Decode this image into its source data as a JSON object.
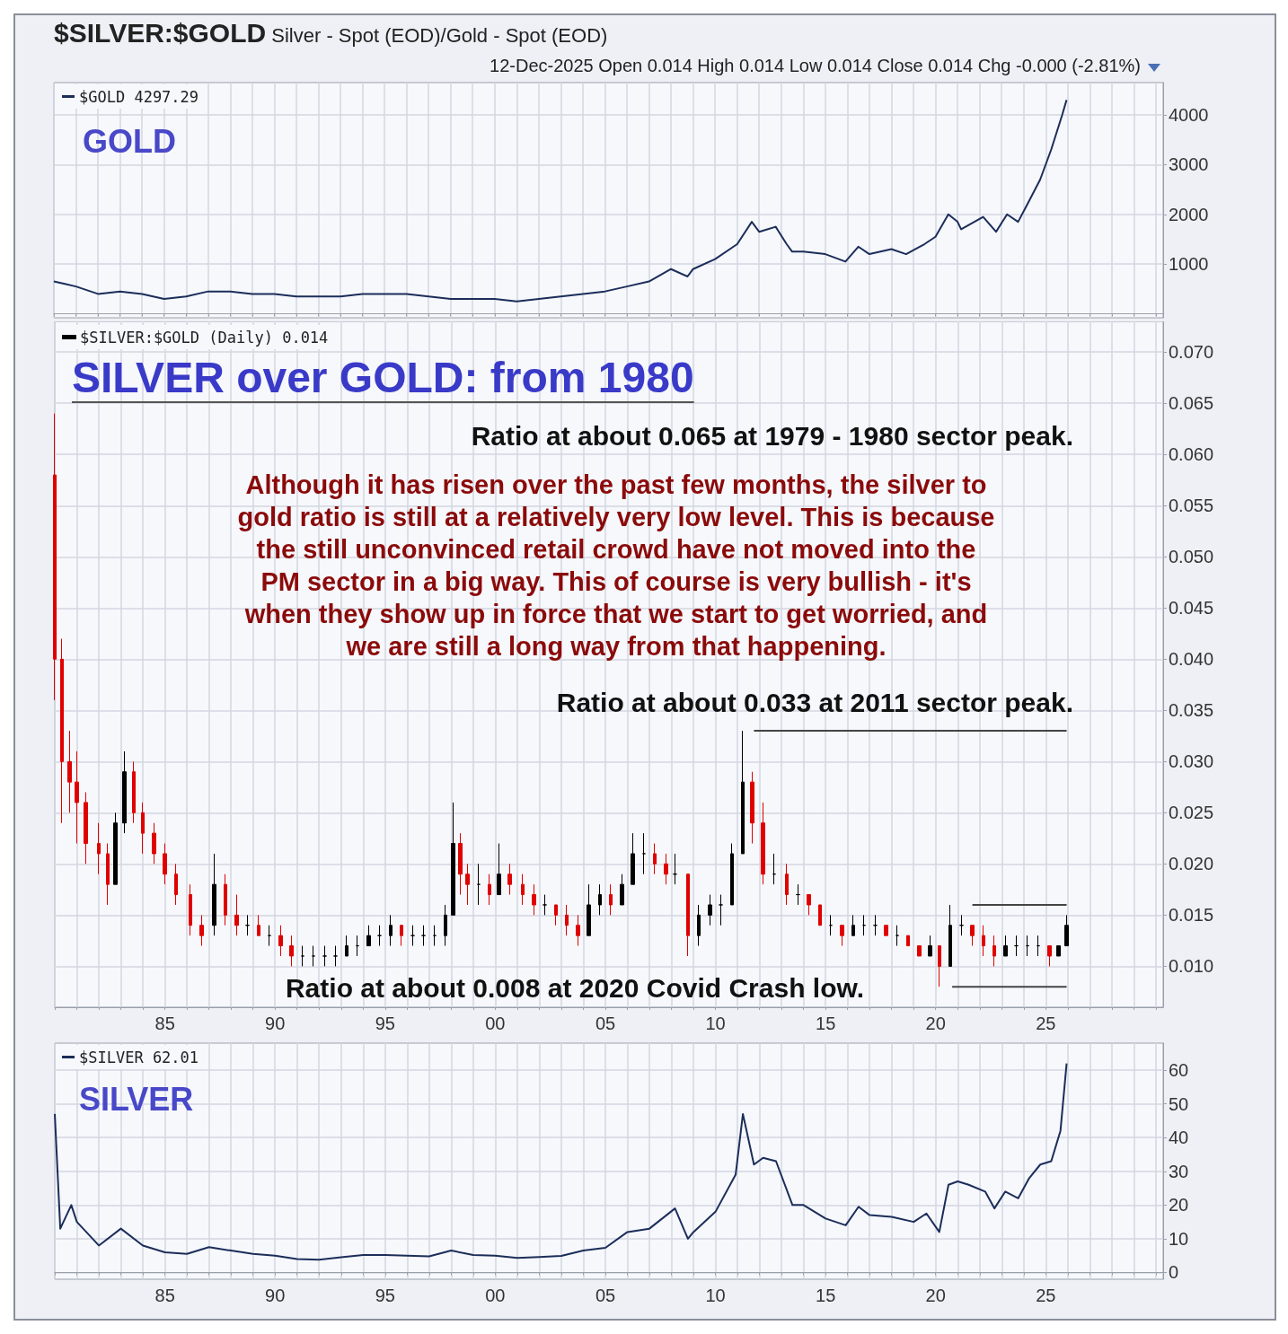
{
  "chart_data": [
    {
      "type": "other",
      "title": "$SILVER:$GOLD Silver - Spot (EOD)/Gold - Spot (EOD)",
      "subtitle": "12-Dec-2025 Open 0.014 High 0.014 Low 0.014 Close 0.014 Chg -0.000 (-2.81%)"
    },
    {
      "type": "line",
      "annotations": [
        "GOLD"
      ],
      "xlim": [
        "1980-01-01",
        "2030-05-01"
      ],
      "xticks": [
        {
          "value": "1980",
          "label": null
        },
        {
          "value": "1981",
          "label": null
        },
        {
          "value": "1982",
          "label": null
        },
        {
          "value": "1983",
          "label": null
        },
        {
          "value": "1984",
          "label": null
        },
        {
          "value": "1985",
          "label": null
        },
        {
          "value": "1986",
          "label": null
        },
        {
          "value": "1987",
          "label": null
        },
        {
          "value": "1988",
          "label": null
        },
        {
          "value": "1989",
          "label": null
        },
        {
          "value": "1990",
          "label": null
        },
        {
          "value": "1991",
          "label": null
        },
        {
          "value": "1992",
          "label": null
        },
        {
          "value": "1993",
          "label": null
        },
        {
          "value": "1994",
          "label": null
        },
        {
          "value": "1995",
          "label": null
        },
        {
          "value": "1996",
          "label": null
        },
        {
          "value": "1997",
          "label": null
        },
        {
          "value": "1998",
          "label": null
        },
        {
          "value": "1999",
          "label": null
        },
        {
          "value": "2000",
          "label": null
        },
        {
          "value": "2001",
          "label": null
        },
        {
          "value": "2002",
          "label": null
        },
        {
          "value": "2003",
          "label": null
        },
        {
          "value": "2004",
          "label": null
        },
        {
          "value": "2005",
          "label": null
        },
        {
          "value": "2006",
          "label": null
        },
        {
          "value": "2007",
          "label": null
        },
        {
          "value": "2008",
          "label": null
        },
        {
          "value": "2009",
          "label": null
        },
        {
          "value": "2010",
          "label": null
        },
        {
          "value": "2011",
          "label": null
        },
        {
          "value": "2012",
          "label": null
        },
        {
          "value": "2013",
          "label": null
        },
        {
          "value": "2014",
          "label": null
        },
        {
          "value": "2015",
          "label": null
        },
        {
          "value": "2016",
          "label": null
        },
        {
          "value": "2017",
          "label": null
        },
        {
          "value": "2018",
          "label": null
        },
        {
          "value": "2019",
          "label": null
        },
        {
          "value": "2020",
          "label": null
        },
        {
          "value": "2021",
          "label": null
        },
        {
          "value": "2022",
          "label": null
        },
        {
          "value": "2023",
          "label": null
        },
        {
          "value": "2024",
          "label": null
        },
        {
          "value": "2025",
          "label": null
        },
        {
          "value": "2026",
          "label": null
        },
        {
          "value": "2027",
          "label": null
        },
        {
          "value": "2028",
          "label": null
        },
        {
          "value": "2029",
          "label": null
        },
        {
          "value": "2030",
          "label": null
        }
      ],
      "ylim": [
        -80,
        4650
      ],
      "yticks": [
        1000,
        2000,
        3000,
        4000
      ],
      "grid": true,
      "legend": "top left",
      "tick_labels": "y",
      "series": [
        {
          "name": "$GOLD 4297.29",
          "color": "#1c2d5a",
          "x": [
            "1980-01",
            "1980-07",
            "1981-01",
            "1982-01",
            "1983-01",
            "1984-01",
            "1985-01",
            "1986-01",
            "1987-01",
            "1988-01",
            "1989-01",
            "1990-01",
            "1991-01",
            "1992-01",
            "1993-01",
            "1994-01",
            "1995-01",
            "1996-01",
            "1997-01",
            "1998-01",
            "1999-01",
            "2000-01",
            "2001-01",
            "2002-01",
            "2003-01",
            "2004-01",
            "2005-01",
            "2006-01",
            "2007-01",
            "2008-01",
            "2008-10",
            "2009-01",
            "2010-01",
            "2011-01",
            "2011-09",
            "2012-01",
            "2012-10",
            "2013-04",
            "2013-07",
            "2014-01",
            "2015-01",
            "2015-12",
            "2016-07",
            "2017-01",
            "2018-01",
            "2018-09",
            "2019-07",
            "2020-01",
            "2020-08",
            "2021-01",
            "2021-03",
            "2022-03",
            "2022-10",
            "2023-04",
            "2023-10",
            "2024-03",
            "2024-10",
            "2025-04",
            "2025-10",
            "2025-12-12"
          ],
          "values": [
            650,
            600,
            550,
            400,
            450,
            400,
            300,
            350,
            450,
            450,
            400,
            400,
            350,
            350,
            350,
            400,
            400,
            400,
            350,
            300,
            300,
            300,
            250,
            300,
            350,
            400,
            450,
            550,
            650,
            900,
            750,
            900,
            1100,
            1400,
            1850,
            1650,
            1750,
            1400,
            1250,
            1250,
            1200,
            1050,
            1350,
            1200,
            1300,
            1200,
            1400,
            1550,
            2000,
            1850,
            1700,
            1950,
            1650,
            2000,
            1850,
            2200,
            2700,
            3300,
            4000,
            4300
          ]
        }
      ]
    },
    {
      "type": "candlestick",
      "title": "SILVER over GOLD: from 1980",
      "annotations": [
        "Ratio at about 0.065 at 1979 - 1980 sector peak.",
        "Although it has risen over the past few months, the silver to\ngold ratio is still at a relatively very low level. This is because\nthe still unconvinced retail crowd have not moved into the\nPM sector in a big way. This of course is very bullish - it's\nwhen they show up in force that we start to get worried, and\nwe are still a long way from that happening.",
        "Ratio at about 0.033 at 2011 sector peak.",
        "Ratio at about 0.008 at 2020 Covid Crash low."
      ],
      "xlim": [
        "1980-01-01",
        "2030-05-01"
      ],
      "xticks": [
        {
          "value": "1980",
          "label": null
        },
        {
          "value": "1981",
          "label": null
        },
        {
          "value": "1982",
          "label": null
        },
        {
          "value": "1983",
          "label": null
        },
        {
          "value": "1984",
          "label": null
        },
        {
          "value": "1985",
          "label": "85"
        },
        {
          "value": "1986",
          "label": null
        },
        {
          "value": "1987",
          "label": null
        },
        {
          "value": "1988",
          "label": null
        },
        {
          "value": "1989",
          "label": null
        },
        {
          "value": "1990",
          "label": "90"
        },
        {
          "value": "1991",
          "label": null
        },
        {
          "value": "1992",
          "label": null
        },
        {
          "value": "1993",
          "label": null
        },
        {
          "value": "1994",
          "label": null
        },
        {
          "value": "1995",
          "label": "95"
        },
        {
          "value": "1996",
          "label": null
        },
        {
          "value": "1997",
          "label": null
        },
        {
          "value": "1998",
          "label": null
        },
        {
          "value": "1999",
          "label": null
        },
        {
          "value": "2000",
          "label": "00"
        },
        {
          "value": "2001",
          "label": null
        },
        {
          "value": "2002",
          "label": null
        },
        {
          "value": "2003",
          "label": null
        },
        {
          "value": "2004",
          "label": null
        },
        {
          "value": "2005",
          "label": "05"
        },
        {
          "value": "2006",
          "label": null
        },
        {
          "value": "2007",
          "label": null
        },
        {
          "value": "2008",
          "label": null
        },
        {
          "value": "2009",
          "label": null
        },
        {
          "value": "2010",
          "label": "10"
        },
        {
          "value": "2011",
          "label": null
        },
        {
          "value": "2012",
          "label": null
        },
        {
          "value": "2013",
          "label": null
        },
        {
          "value": "2014",
          "label": null
        },
        {
          "value": "2015",
          "label": "15"
        },
        {
          "value": "2016",
          "label": null
        },
        {
          "value": "2017",
          "label": null
        },
        {
          "value": "2018",
          "label": null
        },
        {
          "value": "2019",
          "label": null
        },
        {
          "value": "2020",
          "label": "20"
        },
        {
          "value": "2021",
          "label": null
        },
        {
          "value": "2022",
          "label": null
        },
        {
          "value": "2023",
          "label": null
        },
        {
          "value": "2024",
          "label": null
        },
        {
          "value": "2025",
          "label": "25"
        },
        {
          "value": "2026",
          "label": null
        },
        {
          "value": "2027",
          "label": null
        },
        {
          "value": "2028",
          "label": null
        },
        {
          "value": "2029",
          "label": null
        },
        {
          "value": "2030",
          "label": null
        }
      ],
      "ylim": [
        0.006,
        0.073
      ],
      "yticks": [
        {
          "value": 0.01,
          "label": "0.010"
        },
        {
          "value": 0.015,
          "label": "0.015"
        },
        {
          "value": 0.02,
          "label": "0.020"
        },
        {
          "value": 0.025,
          "label": "0.025"
        },
        {
          "value": 0.03,
          "label": "0.030"
        },
        {
          "value": 0.035,
          "label": "0.035"
        },
        {
          "value": 0.04,
          "label": "0.040"
        },
        {
          "value": 0.045,
          "label": "0.045"
        },
        {
          "value": 0.05,
          "label": "0.050"
        },
        {
          "value": 0.055,
          "label": "0.055"
        },
        {
          "value": 0.06,
          "label": "0.060"
        },
        {
          "value": 0.065,
          "label": "0.065"
        },
        {
          "value": 0.07,
          "label": "0.070"
        }
      ],
      "grid": true,
      "legend": "top left",
      "series": [
        {
          "name": "$SILVER:$GOLD (Daily) 0.014",
          "color": "#000000",
          "colors": [
            "#e00000",
            "#e00000",
            "#e00000",
            "#e00000",
            "#e00000",
            "#e00000",
            "#e00000",
            "#000000",
            "#000000",
            "#e00000",
            "#e00000",
            "#e00000",
            "#e00000",
            "#e00000",
            "#e00000",
            "#e00000",
            "#000000",
            "#e00000",
            "#e00000",
            "#000000",
            "#e00000",
            "#000000",
            "#e00000",
            "#e00000",
            "#000000",
            "#000000",
            "#000000",
            "#000000",
            "#000000",
            "#000000",
            "#000000",
            "#000000",
            "#000000",
            "#e00000",
            "#000000",
            "#000000",
            "#000000",
            "#000000",
            "#000000",
            "#e00000",
            "#e00000",
            "#000000",
            "#e00000",
            "#000000",
            "#e00000",
            "#e00000",
            "#e00000",
            "#000000",
            "#e00000",
            "#e00000",
            "#e00000",
            "#000000",
            "#000000",
            "#e00000",
            "#000000",
            "#000000",
            "#000000",
            "#e00000",
            "#e00000",
            "#000000",
            "#e00000",
            "#000000",
            "#000000",
            "#000000",
            "#000000",
            "#000000",
            "#e00000",
            "#e00000",
            "#000000",
            "#e00000",
            "#000000",
            "#e00000",
            "#e00000",
            "#000000",
            "#e00000",
            "#000000",
            "#000000",
            "#000000",
            "#e00000",
            "#000000",
            "#e00000",
            "#e00000",
            "#000000",
            "#e00000",
            "#000000",
            "#000000",
            "#e00000",
            "#e00000",
            "#e00000",
            "#000000",
            "#000000",
            "#000000",
            "#000000",
            "#e00000",
            "#000000",
            "#000000"
          ],
          "x": [
            "1980-01",
            "1980-05",
            "1980-09",
            "1981-01",
            "1981-06",
            "1982-01",
            "1982-06",
            "1982-10",
            "1983-03",
            "1983-08",
            "1984-01",
            "1984-07",
            "1985-01",
            "1985-07",
            "1986-03",
            "1986-09",
            "1987-04",
            "1987-10",
            "1988-04",
            "1988-10",
            "1989-04",
            "1989-10",
            "1990-04",
            "1990-10",
            "1991-04",
            "1991-10",
            "1992-04",
            "1992-10",
            "1993-04",
            "1993-10",
            "1994-04",
            "1994-10",
            "1995-04",
            "1995-10",
            "1996-04",
            "1996-10",
            "1997-04",
            "1997-10",
            "1998-02",
            "1998-06",
            "1998-10",
            "1999-04",
            "1999-10",
            "2000-03",
            "2000-09",
            "2001-04",
            "2001-10",
            "2002-04",
            "2002-10",
            "2003-04",
            "2003-10",
            "2004-04",
            "2004-10",
            "2005-04",
            "2005-10",
            "2006-04",
            "2006-10",
            "2007-04",
            "2007-10",
            "2008-03",
            "2008-10",
            "2009-04",
            "2009-10",
            "2010-04",
            "2010-10",
            "2011-04",
            "2011-09",
            "2012-03",
            "2012-09",
            "2013-04",
            "2013-10",
            "2014-04",
            "2014-10",
            "2015-04",
            "2015-10",
            "2016-04",
            "2016-10",
            "2017-04",
            "2017-10",
            "2018-04",
            "2018-10",
            "2019-04",
            "2019-10",
            "2020-03",
            "2020-09",
            "2021-03",
            "2021-09",
            "2022-03",
            "2022-09",
            "2023-03",
            "2023-09",
            "2024-03",
            "2024-09",
            "2025-03",
            "2025-08",
            "2025-12-12"
          ],
          "ohlc": [
            [
              0.058,
              0.064,
              0.036,
              0.04
            ],
            [
              0.04,
              0.042,
              0.024,
              0.03
            ],
            [
              0.03,
              0.033,
              0.025,
              0.028
            ],
            [
              0.028,
              0.031,
              0.022,
              0.026
            ],
            [
              0.026,
              0.027,
              0.02,
              0.022
            ],
            [
              0.022,
              0.024,
              0.019,
              0.021
            ],
            [
              0.021,
              0.022,
              0.016,
              0.018
            ],
            [
              0.018,
              0.025,
              0.018,
              0.024
            ],
            [
              0.024,
              0.031,
              0.023,
              0.029
            ],
            [
              0.029,
              0.03,
              0.024,
              0.025
            ],
            [
              0.025,
              0.026,
              0.021,
              0.023
            ],
            [
              0.023,
              0.024,
              0.02,
              0.021
            ],
            [
              0.021,
              0.022,
              0.018,
              0.019
            ],
            [
              0.019,
              0.02,
              0.016,
              0.017
            ],
            [
              0.017,
              0.018,
              0.013,
              0.014
            ],
            [
              0.014,
              0.015,
              0.012,
              0.013
            ],
            [
              0.014,
              0.021,
              0.013,
              0.018
            ],
            [
              0.018,
              0.019,
              0.014,
              0.015
            ],
            [
              0.015,
              0.017,
              0.013,
              0.014
            ],
            [
              0.014,
              0.015,
              0.013,
              0.014
            ],
            [
              0.014,
              0.015,
              0.013,
              0.013
            ],
            [
              0.013,
              0.014,
              0.012,
              0.013
            ],
            [
              0.013,
              0.014,
              0.011,
              0.012
            ],
            [
              0.012,
              0.013,
              0.01,
              0.011
            ],
            [
              0.011,
              0.012,
              0.01,
              0.011
            ],
            [
              0.011,
              0.012,
              0.01,
              0.011
            ],
            [
              0.011,
              0.012,
              0.01,
              0.011
            ],
            [
              0.011,
              0.012,
              0.01,
              0.011
            ],
            [
              0.011,
              0.013,
              0.011,
              0.012
            ],
            [
              0.012,
              0.013,
              0.011,
              0.012
            ],
            [
              0.012,
              0.014,
              0.012,
              0.013
            ],
            [
              0.013,
              0.014,
              0.012,
              0.013
            ],
            [
              0.013,
              0.015,
              0.012,
              0.014
            ],
            [
              0.014,
              0.014,
              0.012,
              0.013
            ],
            [
              0.013,
              0.014,
              0.012,
              0.013
            ],
            [
              0.013,
              0.014,
              0.012,
              0.013
            ],
            [
              0.013,
              0.014,
              0.012,
              0.013
            ],
            [
              0.013,
              0.016,
              0.012,
              0.015
            ],
            [
              0.015,
              0.026,
              0.015,
              0.022
            ],
            [
              0.022,
              0.023,
              0.017,
              0.019
            ],
            [
              0.019,
              0.02,
              0.016,
              0.018
            ],
            [
              0.018,
              0.02,
              0.016,
              0.018
            ],
            [
              0.018,
              0.019,
              0.016,
              0.017
            ],
            [
              0.017,
              0.022,
              0.017,
              0.019
            ],
            [
              0.019,
              0.02,
              0.017,
              0.018
            ],
            [
              0.018,
              0.019,
              0.016,
              0.017
            ],
            [
              0.017,
              0.018,
              0.015,
              0.016
            ],
            [
              0.016,
              0.017,
              0.015,
              0.016
            ],
            [
              0.016,
              0.016,
              0.014,
              0.015
            ],
            [
              0.015,
              0.016,
              0.013,
              0.014
            ],
            [
              0.014,
              0.015,
              0.012,
              0.013
            ],
            [
              0.013,
              0.018,
              0.013,
              0.016
            ],
            [
              0.016,
              0.018,
              0.015,
              0.017
            ],
            [
              0.017,
              0.018,
              0.015,
              0.016
            ],
            [
              0.016,
              0.019,
              0.016,
              0.018
            ],
            [
              0.018,
              0.023,
              0.018,
              0.021
            ],
            [
              0.021,
              0.023,
              0.019,
              0.021
            ],
            [
              0.021,
              0.022,
              0.019,
              0.02
            ],
            [
              0.02,
              0.021,
              0.018,
              0.019
            ],
            [
              0.019,
              0.021,
              0.018,
              0.019
            ],
            [
              0.019,
              0.019,
              0.011,
              0.013
            ],
            [
              0.013,
              0.016,
              0.012,
              0.015
            ],
            [
              0.015,
              0.017,
              0.014,
              0.016
            ],
            [
              0.016,
              0.017,
              0.014,
              0.016
            ],
            [
              0.016,
              0.022,
              0.016,
              0.021
            ],
            [
              0.021,
              0.033,
              0.021,
              0.028
            ],
            [
              0.028,
              0.029,
              0.022,
              0.024
            ],
            [
              0.024,
              0.026,
              0.018,
              0.019
            ],
            [
              0.019,
              0.021,
              0.018,
              0.019
            ],
            [
              0.019,
              0.02,
              0.016,
              0.017
            ],
            [
              0.017,
              0.018,
              0.016,
              0.017
            ],
            [
              0.017,
              0.017,
              0.015,
              0.016
            ],
            [
              0.016,
              0.016,
              0.014,
              0.014
            ],
            [
              0.014,
              0.015,
              0.013,
              0.014
            ],
            [
              0.014,
              0.014,
              0.012,
              0.013
            ],
            [
              0.013,
              0.015,
              0.013,
              0.014
            ],
            [
              0.014,
              0.015,
              0.013,
              0.014
            ],
            [
              0.014,
              0.015,
              0.013,
              0.014
            ],
            [
              0.014,
              0.014,
              0.013,
              0.013
            ],
            [
              0.013,
              0.014,
              0.012,
              0.013
            ],
            [
              0.013,
              0.013,
              0.012,
              0.012
            ],
            [
              0.012,
              0.012,
              0.011,
              0.011
            ],
            [
              0.011,
              0.013,
              0.011,
              0.012
            ],
            [
              0.012,
              0.012,
              0.008,
              0.01
            ],
            [
              0.01,
              0.016,
              0.01,
              0.014
            ],
            [
              0.014,
              0.015,
              0.013,
              0.014
            ],
            [
              0.014,
              0.014,
              0.012,
              0.013
            ],
            [
              0.013,
              0.014,
              0.011,
              0.012
            ],
            [
              0.012,
              0.013,
              0.01,
              0.011
            ],
            [
              0.011,
              0.013,
              0.011,
              0.012
            ],
            [
              0.012,
              0.013,
              0.011,
              0.012
            ],
            [
              0.012,
              0.013,
              0.011,
              0.012
            ],
            [
              0.012,
              0.013,
              0.011,
              0.012
            ],
            [
              0.012,
              0.012,
              0.01,
              0.011
            ],
            [
              0.011,
              0.012,
              0.011,
              0.012
            ],
            [
              0.012,
              0.015,
              0.012,
              0.014
            ]
          ]
        },
        {
          "type": "line",
          "color": "#444444",
          "x": [
            "2011-10",
            "2025-12-12"
          ],
          "values": [
            0.033,
            0.033
          ]
        },
        {
          "type": "line",
          "color": "#444444",
          "x": [
            "2021-09",
            "2025-12-12"
          ],
          "values": [
            0.016,
            0.016
          ]
        },
        {
          "type": "line",
          "color": "#444444",
          "x": [
            "2020-10",
            "2025-12-12"
          ],
          "values": [
            0.008,
            0.008
          ]
        }
      ]
    },
    {
      "type": "line",
      "annotations": [
        "SILVER"
      ],
      "xlim": [
        "1980-01-01",
        "2030-05-01"
      ],
      "xticks": [
        {
          "value": "1980",
          "label": null
        },
        {
          "value": "1981",
          "label": null
        },
        {
          "value": "1982",
          "label": null
        },
        {
          "value": "1983",
          "label": null
        },
        {
          "value": "1984",
          "label": null
        },
        {
          "value": "1985",
          "label": "85"
        },
        {
          "value": "1986",
          "label": null
        },
        {
          "value": "1987",
          "label": null
        },
        {
          "value": "1988",
          "label": null
        },
        {
          "value": "1989",
          "label": null
        },
        {
          "value": "1990",
          "label": "90"
        },
        {
          "value": "1991",
          "label": null
        },
        {
          "value": "1992",
          "label": null
        },
        {
          "value": "1993",
          "label": null
        },
        {
          "value": "1994",
          "label": null
        },
        {
          "value": "1995",
          "label": "95"
        },
        {
          "value": "1996",
          "label": null
        },
        {
          "value": "1997",
          "label": null
        },
        {
          "value": "1998",
          "label": null
        },
        {
          "value": "1999",
          "label": null
        },
        {
          "value": "2000",
          "label": "00"
        },
        {
          "value": "2001",
          "label": null
        },
        {
          "value": "2002",
          "label": null
        },
        {
          "value": "2003",
          "label": null
        },
        {
          "value": "2004",
          "label": null
        },
        {
          "value": "2005",
          "label": "05"
        },
        {
          "value": "2006",
          "label": null
        },
        {
          "value": "2007",
          "label": null
        },
        {
          "value": "2008",
          "label": null
        },
        {
          "value": "2009",
          "label": null
        },
        {
          "value": "2010",
          "label": "10"
        },
        {
          "value": "2011",
          "label": null
        },
        {
          "value": "2012",
          "label": null
        },
        {
          "value": "2013",
          "label": null
        },
        {
          "value": "2014",
          "label": null
        },
        {
          "value": "2015",
          "label": "15"
        },
        {
          "value": "2016",
          "label": null
        },
        {
          "value": "2017",
          "label": null
        },
        {
          "value": "2018",
          "label": null
        },
        {
          "value": "2019",
          "label": null
        },
        {
          "value": "2020",
          "label": "20"
        },
        {
          "value": "2021",
          "label": null
        },
        {
          "value": "2022",
          "label": null
        },
        {
          "value": "2023",
          "label": null
        },
        {
          "value": "2024",
          "label": null
        },
        {
          "value": "2025",
          "label": "25"
        },
        {
          "value": "2026",
          "label": null
        },
        {
          "value": "2027",
          "label": null
        },
        {
          "value": "2028",
          "label": null
        },
        {
          "value": "2029",
          "label": null
        },
        {
          "value": "2030",
          "label": null
        }
      ],
      "ylim": [
        -2,
        68
      ],
      "yticks": [
        0,
        10,
        20,
        30,
        40,
        50,
        60
      ],
      "grid": true,
      "legend": "top left",
      "series": [
        {
          "name": "$SILVER 62.01",
          "color": "#1c2d5a",
          "x": [
            "1980-01",
            "1980-04",
            "1980-10",
            "1981-01",
            "1982-01",
            "1983-01",
            "1984-01",
            "1985-01",
            "1986-01",
            "1987-01",
            "1988-01",
            "1989-01",
            "1990-01",
            "1991-01",
            "1992-01",
            "1993-01",
            "1994-01",
            "1995-01",
            "1996-01",
            "1997-01",
            "1998-01",
            "1999-01",
            "2000-01",
            "2001-01",
            "2002-01",
            "2003-01",
            "2004-01",
            "2005-01",
            "2006-01",
            "2007-01",
            "2008-03",
            "2008-10",
            "2009-01",
            "2010-01",
            "2010-12",
            "2011-04",
            "2011-10",
            "2012-03",
            "2012-10",
            "2013-07",
            "2014-01",
            "2015-01",
            "2015-12",
            "2016-07",
            "2017-01",
            "2018-01",
            "2019-01",
            "2019-08",
            "2020-03",
            "2020-08",
            "2021-01",
            "2021-07",
            "2022-04",
            "2022-09",
            "2023-03",
            "2023-10",
            "2024-04",
            "2024-10",
            "2025-04",
            "2025-09",
            "2025-12-12"
          ],
          "values": [
            47,
            13,
            20,
            15,
            8,
            13,
            8,
            6,
            5.5,
            7.5,
            6.5,
            5.5,
            5,
            4,
            3.8,
            4.5,
            5.2,
            5.2,
            5,
            4.8,
            6.5,
            5.2,
            5,
            4.3,
            4.6,
            4.9,
            6.5,
            7.3,
            12,
            13,
            19,
            10,
            12,
            18,
            29,
            47,
            32,
            34,
            33,
            20,
            20,
            16,
            14,
            19.5,
            17,
            16.5,
            15,
            17.5,
            12,
            26,
            27,
            26,
            24,
            19,
            24,
            22,
            28,
            32,
            33,
            42,
            62
          ]
        }
      ]
    }
  ]
}
